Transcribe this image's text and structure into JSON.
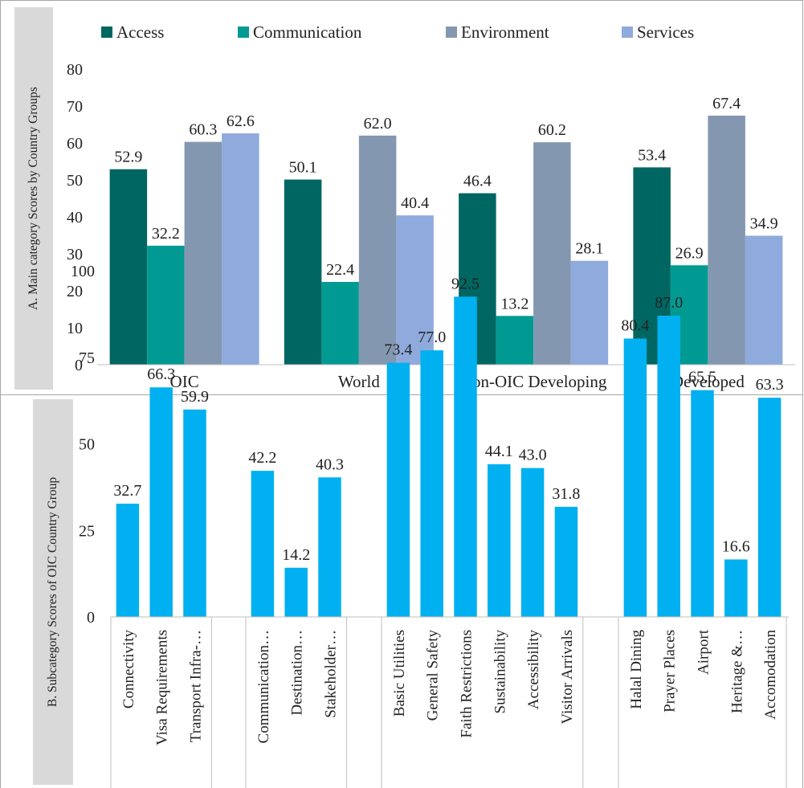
{
  "panel_a": {
    "side_label": "A. Main category Scores by Country Groups"
  },
  "panel_b": {
    "side_label": "B. Subcategory Scores of OIC Country Group"
  },
  "chart_data": [
    {
      "type": "bar",
      "categories": [
        "OIC",
        "World",
        "Non-OIC Developing",
        "Developed"
      ],
      "series": [
        {
          "name": "Access",
          "values": [
            52.9,
            50.1,
            46.4,
            53.4
          ],
          "color": "#006661"
        },
        {
          "name": "Communication",
          "values": [
            32.2,
            22.4,
            13.2,
            26.9
          ],
          "color": "#009a93"
        },
        {
          "name": "Environment",
          "values": [
            60.3,
            62.0,
            60.2,
            67.4
          ],
          "color": "#8497b0"
        },
        {
          "name": "Services",
          "values": [
            62.6,
            40.4,
            28.1,
            34.9
          ],
          "color": "#8faadc"
        }
      ],
      "value_labels": [
        [
          "52.9",
          "50.1",
          "46.4",
          "53.4"
        ],
        [
          "32.2",
          "22.4",
          "13.2",
          "26.9"
        ],
        [
          "60.3",
          "62.0",
          "60.2",
          "67.4"
        ],
        [
          "62.6",
          "40.4",
          "28.1",
          "34.9"
        ]
      ],
      "y_ticks": [
        "0",
        "10",
        "20",
        "30",
        "40",
        "50",
        "60",
        "70",
        "80"
      ],
      "ylim": [
        0,
        80
      ],
      "legend_position": "top",
      "grid": false
    },
    {
      "type": "bar",
      "categories": [
        "Connectivity",
        "Visa Requirements",
        "Transport Infra-…",
        "Communication…",
        "Destination…",
        "Stakeholder…",
        "Basic Utilities",
        "General Safety",
        "Faith Restrictions",
        "Sustainability",
        "Accessibility",
        "Visitor Arrivals",
        "Halal Dining",
        "Prayer Places",
        "Airport",
        "Heritage &…",
        "Accomodation"
      ],
      "groups": [
        [
          0,
          1,
          2
        ],
        [
          3,
          4,
          5
        ],
        [
          6,
          7,
          8,
          9,
          10,
          11
        ],
        [
          12,
          13,
          14,
          15,
          16
        ]
      ],
      "values": [
        32.7,
        66.3,
        59.9,
        42.2,
        14.2,
        40.3,
        73.4,
        77.0,
        92.5,
        44.1,
        43.0,
        31.8,
        80.4,
        87.0,
        65.5,
        16.6,
        63.3
      ],
      "value_labels": [
        "32.7",
        "66.3",
        "59.9",
        "42.2",
        "14.2",
        "40.3",
        "73.4",
        "77.0",
        "92.5",
        "44.1",
        "43.0",
        "31.8",
        "80.4",
        "87.0",
        "65.5",
        "16.6",
        "63.3"
      ],
      "y_ticks": [
        "0",
        "25",
        "50",
        "75",
        "100"
      ],
      "ylim": [
        0,
        100
      ],
      "color": "#00b0f0",
      "grid": false
    }
  ]
}
